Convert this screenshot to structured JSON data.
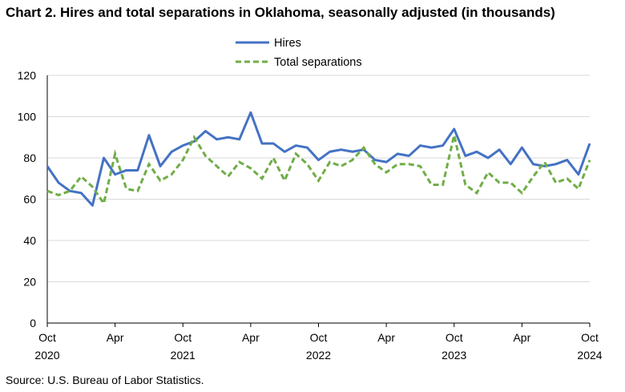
{
  "title": "Chart 2. Hires and total separations in Oklahoma, seasonally adjusted (in thousands)",
  "source": "Source: U.S. Bureau of Labor Statistics.",
  "colors": {
    "hires": "#4472c4",
    "separations": "#70ad47",
    "grid": "#d9d9d9",
    "axis": "#000000"
  },
  "chart_data": {
    "type": "line",
    "title": "Chart 2. Hires and total separations in Oklahoma, seasonally adjusted (in thousands)",
    "xlabel": "",
    "ylabel": "",
    "ylim": [
      0,
      120
    ],
    "yticks": [
      0,
      20,
      40,
      60,
      80,
      100,
      120
    ],
    "grid": true,
    "legend_position": "top-center",
    "x_range": [
      "Oct 2020",
      "Oct 2024"
    ],
    "x_ticks": [
      {
        "index": 0,
        "month": "Oct",
        "year": "2020"
      },
      {
        "index": 6,
        "month": "Apr",
        "year": ""
      },
      {
        "index": 12,
        "month": "Oct",
        "year": "2021"
      },
      {
        "index": 18,
        "month": "Apr",
        "year": ""
      },
      {
        "index": 24,
        "month": "Oct",
        "year": "2022"
      },
      {
        "index": 30,
        "month": "Apr",
        "year": ""
      },
      {
        "index": 36,
        "month": "Oct",
        "year": "2023"
      },
      {
        "index": 42,
        "month": "Apr",
        "year": ""
      },
      {
        "index": 48,
        "month": "Oct",
        "year": "2024"
      }
    ],
    "series": [
      {
        "name": "Hires",
        "style": "solid",
        "values": [
          76,
          68,
          64,
          63,
          57,
          80,
          72,
          74,
          74,
          91,
          76,
          83,
          86,
          88,
          93,
          89,
          90,
          89,
          102,
          87,
          87,
          83,
          86,
          85,
          79,
          83,
          84,
          83,
          84,
          79,
          78,
          82,
          81,
          86,
          85,
          86,
          94,
          81,
          83,
          80,
          84,
          77,
          85,
          77,
          76,
          77,
          79,
          72,
          87
        ]
      },
      {
        "name": "Total separations",
        "style": "dashed",
        "values": [
          64,
          62,
          64,
          71,
          66,
          58,
          82,
          65,
          64,
          77,
          69,
          72,
          79,
          90,
          81,
          76,
          71,
          78,
          75,
          70,
          80,
          69,
          82,
          77,
          69,
          78,
          76,
          79,
          85,
          77,
          73,
          77,
          77,
          76,
          67,
          67,
          91,
          67,
          63,
          73,
          68,
          68,
          63,
          71,
          78,
          68,
          70,
          65,
          79
        ]
      }
    ]
  }
}
